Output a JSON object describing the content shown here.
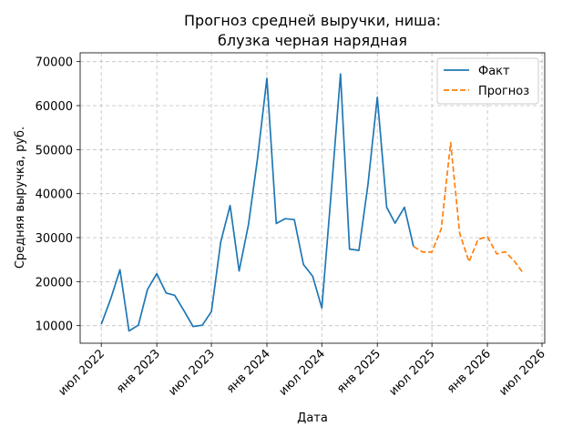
{
  "chart_data": {
    "type": "line",
    "title_line1": "Прогноз средней выручки, ниша:",
    "title_line2": "блузка черная нарядная",
    "xlabel": "Дата",
    "ylabel": "Средняя выручка, руб.",
    "ylim": [
      6000,
      72000
    ],
    "yticks": [
      10000,
      20000,
      30000,
      40000,
      50000,
      60000,
      70000
    ],
    "xticks": [
      {
        "date": "2022-07-01",
        "label": "июл 2022"
      },
      {
        "date": "2023-01-01",
        "label": "янв 2023"
      },
      {
        "date": "2023-07-01",
        "label": "июл 2023"
      },
      {
        "date": "2024-01-01",
        "label": "янв 2024"
      },
      {
        "date": "2024-07-01",
        "label": "июл 2024"
      },
      {
        "date": "2025-01-01",
        "label": "янв 2025"
      },
      {
        "date": "2025-07-01",
        "label": "июл 2025"
      },
      {
        "date": "2026-01-01",
        "label": "янв 2026"
      },
      {
        "date": "2026-07-01",
        "label": "июл 2026"
      }
    ],
    "grid": true,
    "legend_position": "top-right",
    "series": [
      {
        "name": "Факт",
        "color": "#1f77b4",
        "style": "solid",
        "points": [
          [
            "2022-07-01",
            10300
          ],
          [
            "2022-08-01",
            16000
          ],
          [
            "2022-09-01",
            22700
          ],
          [
            "2022-10-01",
            8800
          ],
          [
            "2022-11-01",
            10100
          ],
          [
            "2022-12-01",
            18200
          ],
          [
            "2023-01-01",
            21800
          ],
          [
            "2023-02-01",
            17400
          ],
          [
            "2023-03-01",
            16900
          ],
          [
            "2023-04-01",
            13400
          ],
          [
            "2023-05-01",
            9800
          ],
          [
            "2023-06-01",
            10100
          ],
          [
            "2023-07-01",
            13200
          ],
          [
            "2023-08-01",
            29000
          ],
          [
            "2023-09-01",
            37300
          ],
          [
            "2023-10-01",
            22400
          ],
          [
            "2023-11-01",
            33000
          ],
          [
            "2023-12-01",
            48000
          ],
          [
            "2024-01-01",
            66200
          ],
          [
            "2024-02-01",
            33200
          ],
          [
            "2024-03-01",
            34300
          ],
          [
            "2024-04-01",
            34100
          ],
          [
            "2024-05-01",
            23900
          ],
          [
            "2024-06-01",
            21200
          ],
          [
            "2024-07-01",
            14000
          ],
          [
            "2024-08-01",
            40000
          ],
          [
            "2024-09-01",
            67200
          ],
          [
            "2024-10-01",
            27400
          ],
          [
            "2024-11-01",
            27100
          ],
          [
            "2024-12-01",
            42000
          ],
          [
            "2025-01-01",
            61900
          ],
          [
            "2025-02-01",
            36900
          ],
          [
            "2025-03-01",
            33300
          ],
          [
            "2025-04-01",
            36900
          ],
          [
            "2025-05-01",
            28000
          ]
        ]
      },
      {
        "name": "Прогноз",
        "color": "#ff7f0e",
        "style": "dashed",
        "points": [
          [
            "2025-05-01",
            28000
          ],
          [
            "2025-06-01",
            26700
          ],
          [
            "2025-07-01",
            26700
          ],
          [
            "2025-08-01",
            32000
          ],
          [
            "2025-09-01",
            51600
          ],
          [
            "2025-10-01",
            31000
          ],
          [
            "2025-11-01",
            24500
          ],
          [
            "2025-12-01",
            29600
          ],
          [
            "2026-01-01",
            30200
          ],
          [
            "2026-02-01",
            26300
          ],
          [
            "2026-03-01",
            26800
          ],
          [
            "2026-04-01",
            24600
          ],
          [
            "2026-05-01",
            21800
          ]
        ]
      }
    ]
  }
}
